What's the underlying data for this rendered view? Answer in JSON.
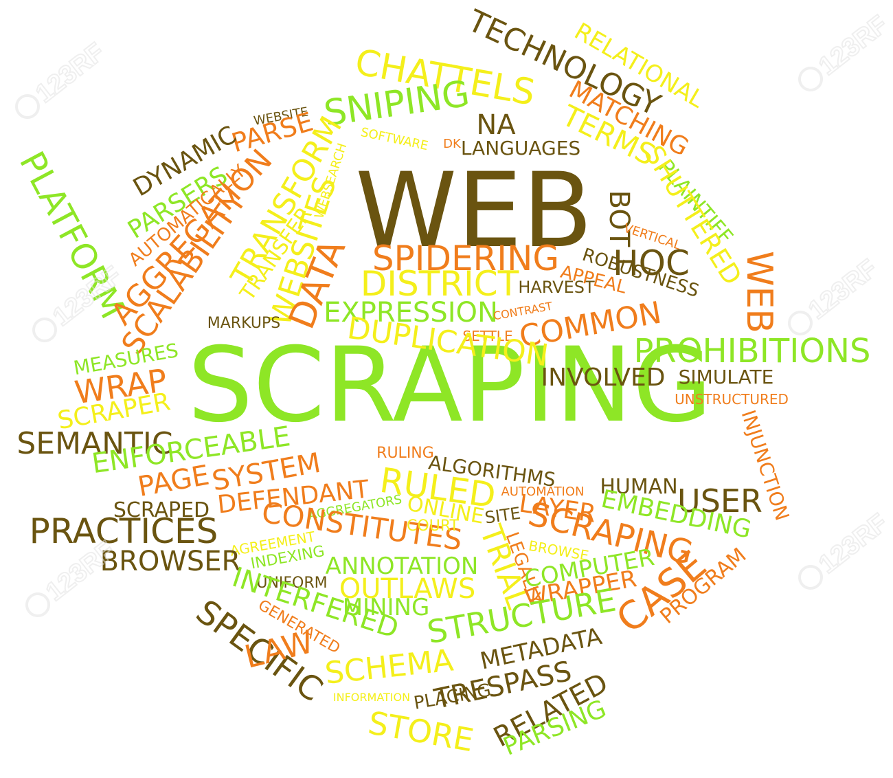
{
  "colors": {
    "brown": "#6a5410",
    "orange": "#f07d1c",
    "yellow": "#f4ef1b",
    "green": "#8ee626",
    "background": "#ffffff",
    "watermark": "#e6e6e6"
  },
  "watermark": {
    "text": "123RF",
    "icon": "camera-icon"
  },
  "words": [
    {
      "text": "WEB",
      "color": "brown"
    },
    {
      "text": "SCRAPING",
      "color": "green"
    },
    {
      "text": "TECHNOLOGY",
      "color": "brown"
    },
    {
      "text": "RELATIONAL",
      "color": "yellow"
    },
    {
      "text": "CHATTELS",
      "color": "yellow"
    },
    {
      "text": "MATCHING",
      "color": "orange"
    },
    {
      "text": "SNIPING",
      "color": "green"
    },
    {
      "text": "NA",
      "color": "brown"
    },
    {
      "text": "TERMS",
      "color": "yellow"
    },
    {
      "text": "WEBSITE",
      "color": "brown"
    },
    {
      "text": "PARSE",
      "color": "orange"
    },
    {
      "text": "SOFTWARE",
      "color": "yellow"
    },
    {
      "text": "DK",
      "color": "orange"
    },
    {
      "text": "LANGUAGES",
      "color": "brown"
    },
    {
      "text": "DYNAMIC",
      "color": "brown"
    },
    {
      "text": "PLATFORM",
      "color": "green"
    },
    {
      "text": "WEBSEARCH",
      "color": "yellow"
    },
    {
      "text": "PLAINTIFF",
      "color": "green"
    },
    {
      "text": "SHUTTERED",
      "color": "yellow"
    },
    {
      "text": "PARSERS",
      "color": "green"
    },
    {
      "text": "AUTOMATICALLY",
      "color": "orange"
    },
    {
      "text": "TRANSFORM",
      "color": "yellow"
    },
    {
      "text": "AGGREGATION",
      "color": "orange"
    },
    {
      "text": "BOT",
      "color": "brown"
    },
    {
      "text": "VERTICAL",
      "color": "orange"
    },
    {
      "text": "SCALABILITY",
      "color": "orange"
    },
    {
      "text": "TRANSFER",
      "color": "yellow"
    },
    {
      "text": "WEBSITES",
      "color": "yellow"
    },
    {
      "text": "DATA",
      "color": "orange"
    },
    {
      "text": "SPIDERING",
      "color": "orange"
    },
    {
      "text": "HOC",
      "color": "brown"
    },
    {
      "text": "ROBUSTNESS",
      "color": "brown"
    },
    {
      "text": "DISTRICT",
      "color": "yellow"
    },
    {
      "text": "HARVEST",
      "color": "brown"
    },
    {
      "text": "APPEAL",
      "color": "orange"
    },
    {
      "text": "WEB",
      "color": "orange"
    },
    {
      "text": "MARKUPS",
      "color": "brown"
    },
    {
      "text": "EXPRESSION",
      "color": "green"
    },
    {
      "text": "CONTRAST",
      "color": "orange"
    },
    {
      "text": "COMMON",
      "color": "orange"
    },
    {
      "text": "SETTLE",
      "color": "orange"
    },
    {
      "text": "DUPLICATION",
      "color": "yellow"
    },
    {
      "text": "PROHIBITIONS",
      "color": "green"
    },
    {
      "text": "MEASURES",
      "color": "green"
    },
    {
      "text": "INVOLVED",
      "color": "brown"
    },
    {
      "text": "SIMULATE",
      "color": "brown"
    },
    {
      "text": "WRAP",
      "color": "orange"
    },
    {
      "text": "UNSTRUCTURED",
      "color": "orange"
    },
    {
      "text": "SCRAPER",
      "color": "yellow"
    },
    {
      "text": "SEMANTIC",
      "color": "brown"
    },
    {
      "text": "INJUNCTION",
      "color": "orange"
    },
    {
      "text": "ENFORCEABLE",
      "color": "green"
    },
    {
      "text": "RULING",
      "color": "orange"
    },
    {
      "text": "ALGORITHMS",
      "color": "brown"
    },
    {
      "text": "PAGE",
      "color": "orange"
    },
    {
      "text": "SYSTEM",
      "color": "orange"
    },
    {
      "text": "RULED",
      "color": "yellow"
    },
    {
      "text": "DEFENDANT",
      "color": "orange"
    },
    {
      "text": "AUTOMATION",
      "color": "orange"
    },
    {
      "text": "HUMAN",
      "color": "brown"
    },
    {
      "text": "USER",
      "color": "brown"
    },
    {
      "text": "SCRAPED",
      "color": "brown"
    },
    {
      "text": "AGGREGATORS",
      "color": "green"
    },
    {
      "text": "ONLINE",
      "color": "yellow"
    },
    {
      "text": "SITE",
      "color": "brown"
    },
    {
      "text": "LAYER",
      "color": "orange"
    },
    {
      "text": "EMBEDDING",
      "color": "green"
    },
    {
      "text": "PRACTICES",
      "color": "brown"
    },
    {
      "text": "CONSTITUTES",
      "color": "orange"
    },
    {
      "text": "COURT",
      "color": "yellow"
    },
    {
      "text": "SCRAPING",
      "color": "orange"
    },
    {
      "text": "AGREEMENT",
      "color": "yellow"
    },
    {
      "text": "TRIAL",
      "color": "yellow"
    },
    {
      "text": "LEGALLY",
      "color": "orange"
    },
    {
      "text": "BROWSER",
      "color": "brown"
    },
    {
      "text": "INDEXING",
      "color": "green"
    },
    {
      "text": "ANNOTATION",
      "color": "green"
    },
    {
      "text": "BROWSE",
      "color": "yellow"
    },
    {
      "text": "COMPUTER",
      "color": "green"
    },
    {
      "text": "PROGRAM",
      "color": "orange"
    },
    {
      "text": "UNIFORM",
      "color": "brown"
    },
    {
      "text": "OUTLAWS",
      "color": "yellow"
    },
    {
      "text": "WRAPPER",
      "color": "orange"
    },
    {
      "text": "CASE",
      "color": "orange"
    },
    {
      "text": "INTERFERED",
      "color": "green"
    },
    {
      "text": "MINING",
      "color": "green"
    },
    {
      "text": "GENERATED",
      "color": "orange"
    },
    {
      "text": "STRUCTURE",
      "color": "green"
    },
    {
      "text": "SPECIFIC",
      "color": "brown"
    },
    {
      "text": "LAW",
      "color": "orange"
    },
    {
      "text": "SCHEMA",
      "color": "yellow"
    },
    {
      "text": "METADATA",
      "color": "brown"
    },
    {
      "text": "TRESPASS",
      "color": "brown"
    },
    {
      "text": "PLACING",
      "color": "brown"
    },
    {
      "text": "INFORMATION",
      "color": "yellow"
    },
    {
      "text": "RELATED",
      "color": "brown"
    },
    {
      "text": "STORE",
      "color": "yellow"
    },
    {
      "text": "PARSING",
      "color": "green"
    }
  ]
}
